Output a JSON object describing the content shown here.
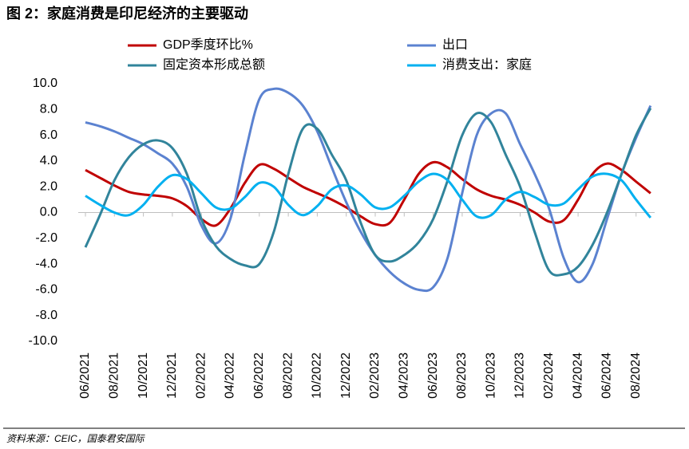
{
  "chart_data": {
    "type": "line",
    "title": "图 2：家庭消费是印尼经济的主要驱动",
    "source": "资料来源：CEIC，国泰君安国际",
    "categories": [
      "06/2021",
      null,
      "08/2021",
      null,
      "10/2021",
      null,
      "12/2021",
      null,
      "02/2022",
      null,
      "04/2022",
      null,
      "06/2022",
      null,
      "08/2022",
      null,
      "10/2022",
      null,
      "12/2022",
      null,
      "02/2023",
      null,
      "04/2023",
      null,
      "06/2023",
      null,
      "08/2023",
      null,
      "10/2023",
      null,
      "12/2023",
      null,
      "02/2024",
      null,
      "04/2024",
      null,
      "06/2024",
      null,
      "08/2024",
      null
    ],
    "series": [
      {
        "name": "GDP季度环比%",
        "color": "#c00000",
        "values": [
          3.3,
          2.7,
          2.1,
          1.6,
          1.4,
          1.3,
          1.1,
          0.5,
          -0.5,
          -1.0,
          0.3,
          2.3,
          3.7,
          3.4,
          2.7,
          2.0,
          1.5,
          1.0,
          0.4,
          -0.3,
          -0.9,
          -0.8,
          1.0,
          3.0,
          3.9,
          3.5,
          2.6,
          1.8,
          1.3,
          1.0,
          0.6,
          0.0,
          -0.7,
          -0.6,
          1.0,
          3.0,
          3.8,
          3.3,
          2.4,
          1.5
        ]
      },
      {
        "name": "出口",
        "color": "#5b82d0",
        "values": [
          7.0,
          6.7,
          6.3,
          5.8,
          5.3,
          4.6,
          3.8,
          2.0,
          -1.0,
          -2.4,
          -0.5,
          4.5,
          8.8,
          9.6,
          9.3,
          8.3,
          6.3,
          3.5,
          0.8,
          -1.5,
          -3.3,
          -4.6,
          -5.5,
          -6.0,
          -5.8,
          -3.5,
          1.5,
          6.0,
          7.7,
          7.7,
          5.3,
          3.0,
          0.3,
          -3.5,
          -5.4,
          -4.0,
          -0.5,
          3.0,
          5.8,
          8.3
        ]
      },
      {
        "name": "固定资本形成总额",
        "color": "#31849b",
        "values": [
          -2.7,
          -0.2,
          2.5,
          4.3,
          5.3,
          5.6,
          5.0,
          3.0,
          -0.5,
          -2.6,
          -3.6,
          -4.1,
          -4.0,
          -1.5,
          3.0,
          6.5,
          6.5,
          4.5,
          2.5,
          -0.8,
          -3.3,
          -3.8,
          -3.3,
          -2.3,
          -0.5,
          2.5,
          6.0,
          7.7,
          7.0,
          4.5,
          2.0,
          -1.5,
          -4.5,
          -4.8,
          -4.2,
          -2.5,
          0.0,
          3.0,
          6.0,
          8.1
        ]
      },
      {
        "name": "消费支出：家庭",
        "color": "#00b0f0",
        "values": [
          1.3,
          0.6,
          0.0,
          -0.2,
          0.6,
          2.0,
          2.9,
          2.6,
          1.5,
          0.4,
          0.3,
          1.2,
          2.3,
          2.0,
          0.6,
          -0.2,
          0.5,
          1.8,
          2.1,
          1.4,
          0.4,
          0.4,
          1.3,
          2.4,
          3.0,
          2.5,
          1.0,
          -0.3,
          -0.2,
          1.0,
          1.6,
          1.2,
          0.6,
          0.7,
          1.8,
          2.8,
          3.0,
          2.5,
          1.0,
          -0.4
        ]
      }
    ],
    "ylim": [
      -10,
      10
    ],
    "yticks": [
      {
        "value": 10,
        "label": "10.0"
      },
      {
        "value": 8,
        "label": "8.0"
      },
      {
        "value": 6,
        "label": "6.0"
      },
      {
        "value": 4,
        "label": "4.0"
      },
      {
        "value": 2,
        "label": "2.0"
      },
      {
        "value": 0,
        "label": "0.0"
      },
      {
        "value": -2,
        "label": "-2.0"
      },
      {
        "value": -4,
        "label": "-4.0"
      },
      {
        "value": -6,
        "label": "-6.0"
      },
      {
        "value": -8,
        "label": "-8.0"
      },
      {
        "value": -10,
        "label": "-10.0"
      }
    ],
    "grid": false
  }
}
